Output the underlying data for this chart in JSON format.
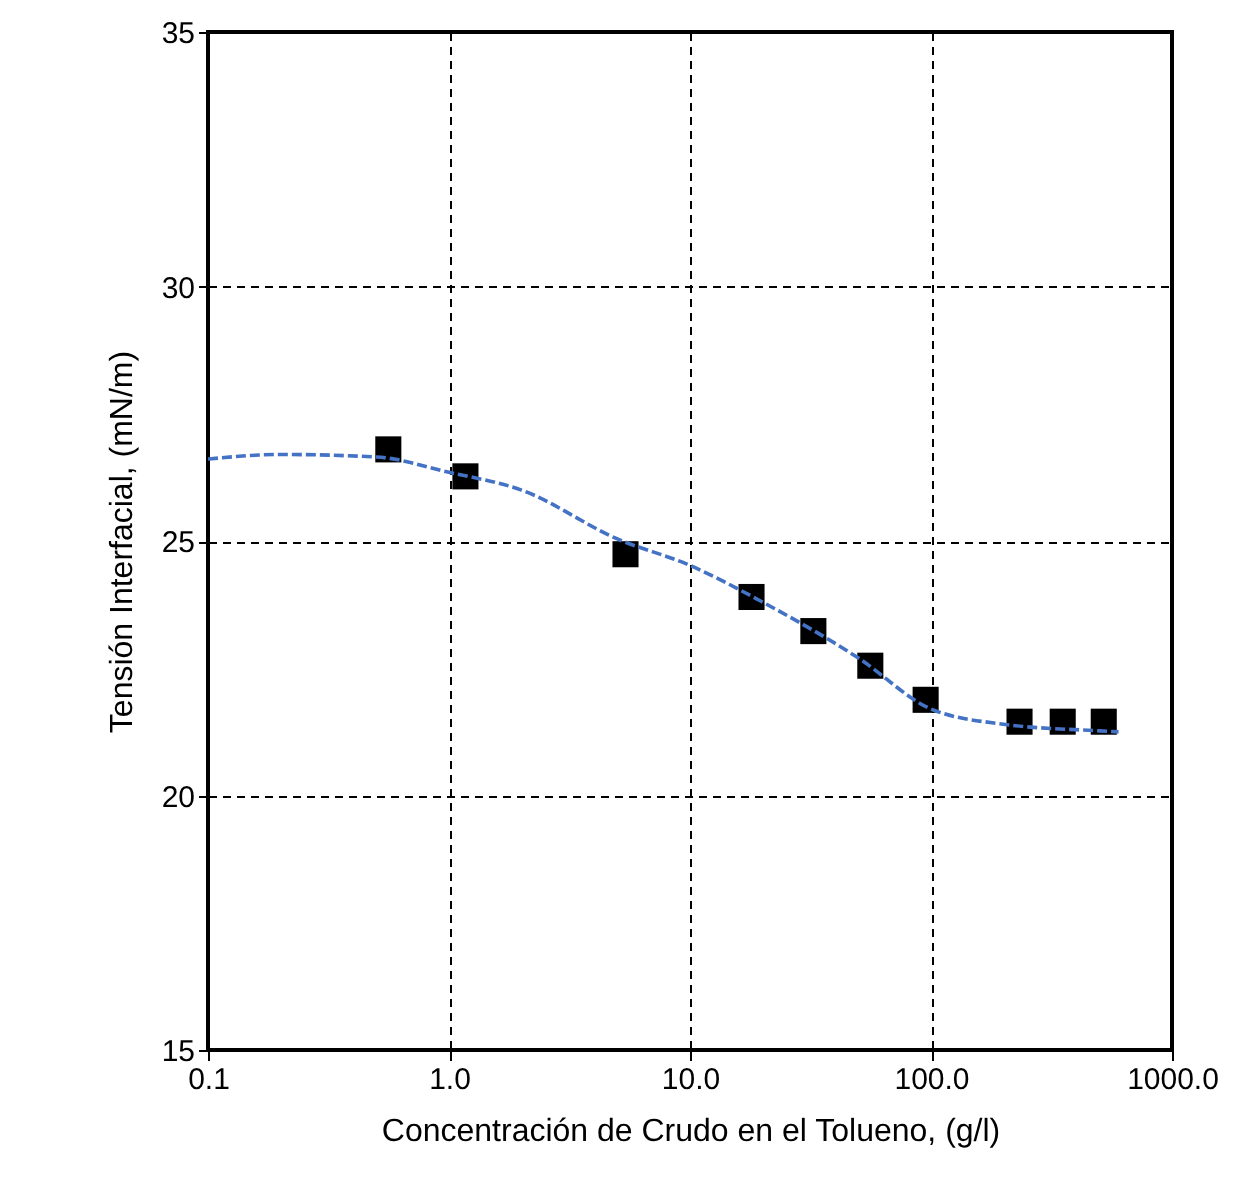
{
  "chart_data": {
    "type": "scatter",
    "xlabel": "Concentración de Crudo en el Tolueno, (g/l)",
    "ylabel": "Tensión Interfacial, (mN/m)",
    "log": "x",
    "grid": true,
    "xlim": [
      0.1,
      1000
    ],
    "ylim": [
      15,
      35
    ],
    "xticks": [
      {
        "value": 0.1,
        "label": "0.1"
      },
      {
        "value": 1,
        "label": "1.0"
      },
      {
        "value": 10,
        "label": "10.0"
      },
      {
        "value": 100,
        "label": "100.0"
      },
      {
        "value": 1000,
        "label": "1000.0"
      }
    ],
    "yticks": [
      15,
      20,
      25,
      30,
      35
    ],
    "series": [
      {
        "type": "scatter",
        "color": "#000000",
        "marker": "square",
        "x": [
          0.56,
          1.17,
          5.4,
          18,
          32.5,
          56,
          95,
          233,
          352,
          521
        ],
        "values": [
          26.8,
          26.27,
          24.74,
          23.9,
          23.23,
          22.55,
          21.88,
          21.45,
          21.45,
          21.45
        ]
      },
      {
        "type": "line",
        "color": "#4472c4",
        "line_style": "dashed",
        "marker": "none",
        "x": [
          0.1,
          0.2,
          0.5,
          1,
          2,
          5,
          10,
          20,
          50,
          100,
          200,
          500,
          600
        ],
        "values": [
          26.61,
          26.7,
          26.65,
          26.35,
          26.0,
          25.04,
          24.52,
          23.8,
          22.7,
          21.7,
          21.4,
          21.27,
          21.25
        ]
      }
    ]
  }
}
